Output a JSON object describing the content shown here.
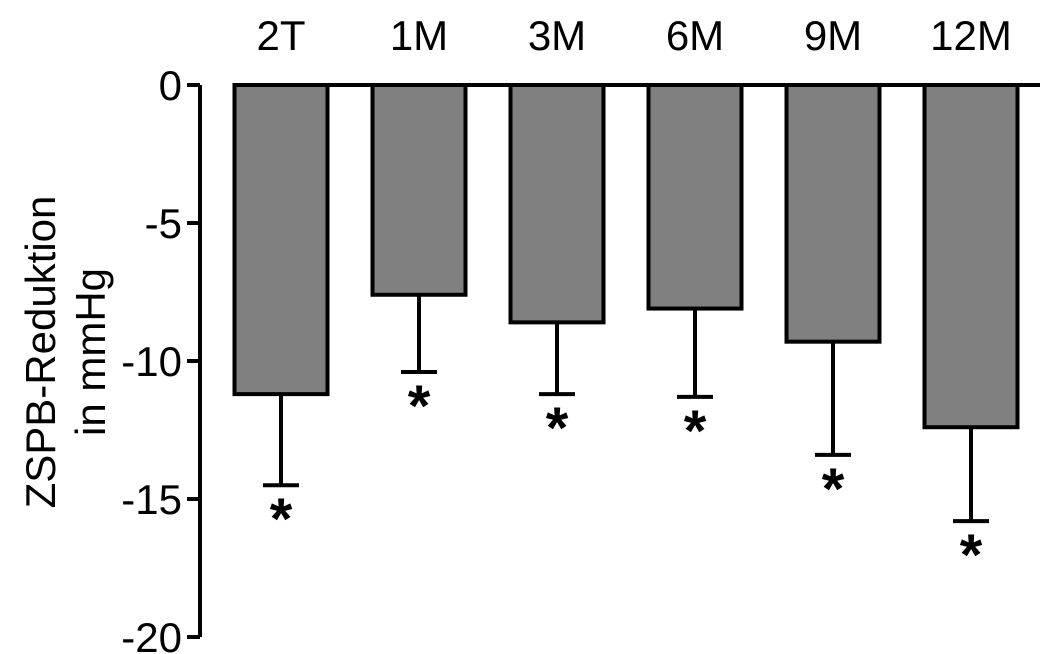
{
  "chart_data": {
    "type": "bar",
    "categories": [
      "2T",
      "1M",
      "3M",
      "6M",
      "9M",
      "12M"
    ],
    "values": [
      -11.2,
      -7.6,
      -8.6,
      -8.1,
      -9.3,
      -12.4
    ],
    "errors": [
      3.3,
      2.8,
      2.6,
      3.2,
      4.1,
      3.4
    ],
    "significance": [
      "*",
      "*",
      "*",
      "*",
      "*",
      "*"
    ],
    "ylabel_lines": [
      "ZSPB-Reduktion",
      "in mmHg"
    ],
    "ylim": [
      -20,
      0
    ],
    "yticks": [
      0,
      -5,
      -10,
      -15,
      -20
    ],
    "ytick_labels": [
      "0",
      "-5",
      "-10",
      "-15",
      "-20"
    ],
    "bar_color": "#808080",
    "edge_color": "#000000",
    "grid": false
  }
}
